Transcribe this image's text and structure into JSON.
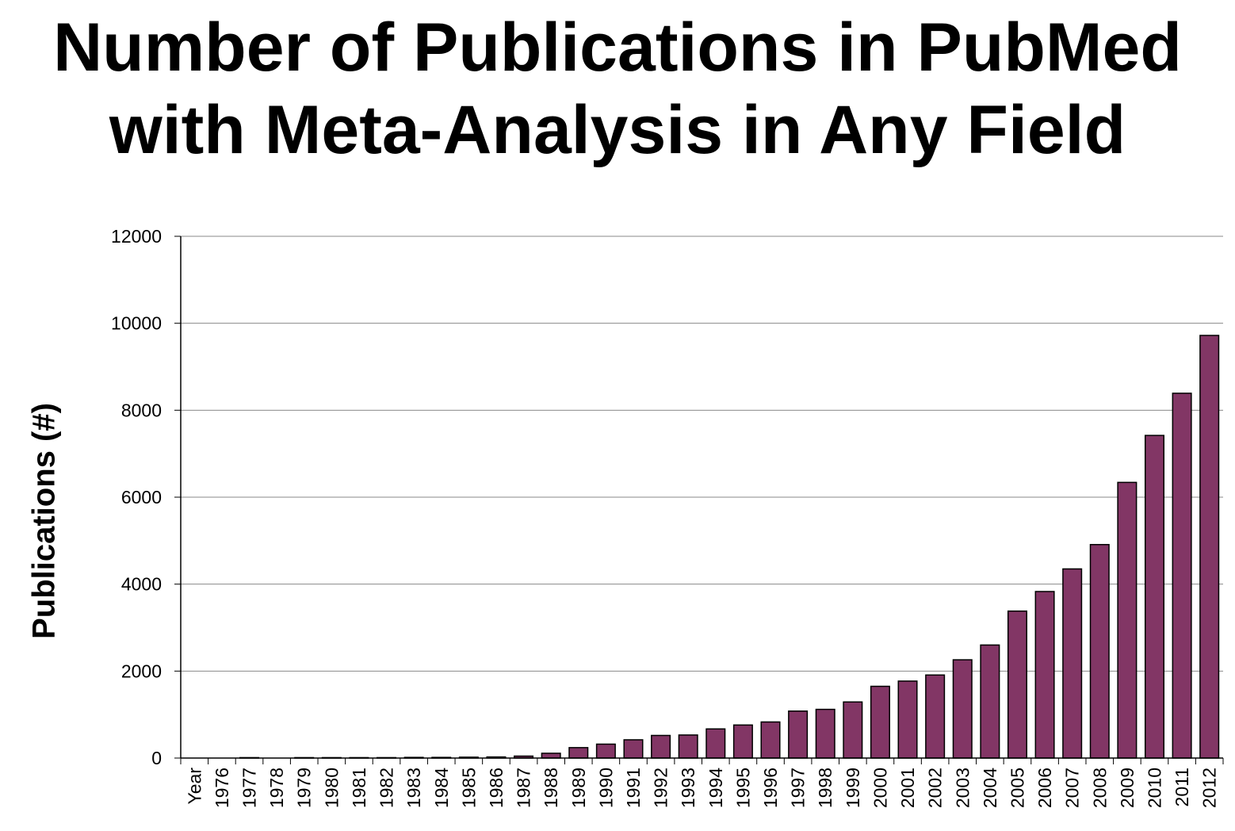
{
  "title_line1": "Number of Publications in PubMed",
  "title_line2": "with Meta-Analysis in Any Field",
  "chart_data": {
    "type": "bar",
    "title": "Number of Publications in PubMed with Meta-Analysis in Any Field",
    "xlabel": "",
    "ylabel": "Publications (#)",
    "ylim": [
      0,
      12000
    ],
    "yticks": [
      0,
      2000,
      4000,
      6000,
      8000,
      10000,
      12000
    ],
    "grid": true,
    "legend": "none",
    "bar_color": "#823665",
    "categories": [
      "Year",
      "1976",
      "1977",
      "1978",
      "1979",
      "1980",
      "1981",
      "1982",
      "1983",
      "1984",
      "1985",
      "1986",
      "1987",
      "1988",
      "1989",
      "1990",
      "1991",
      "1992",
      "1993",
      "1994",
      "1995",
      "1996",
      "1997",
      "1998",
      "1999",
      "2000",
      "2001",
      "2002",
      "2003",
      "2004",
      "2005",
      "2006",
      "2007",
      "2008",
      "2009",
      "2010",
      "2011",
      "2012"
    ],
    "values": [
      0,
      0,
      10,
      0,
      10,
      10,
      10,
      10,
      15,
      15,
      20,
      25,
      45,
      110,
      240,
      320,
      420,
      520,
      530,
      670,
      760,
      830,
      1080,
      1120,
      1290,
      1650,
      1770,
      1910,
      2260,
      2600,
      3380,
      3830,
      4350,
      4910,
      6340,
      7420,
      8390,
      9720
    ]
  }
}
